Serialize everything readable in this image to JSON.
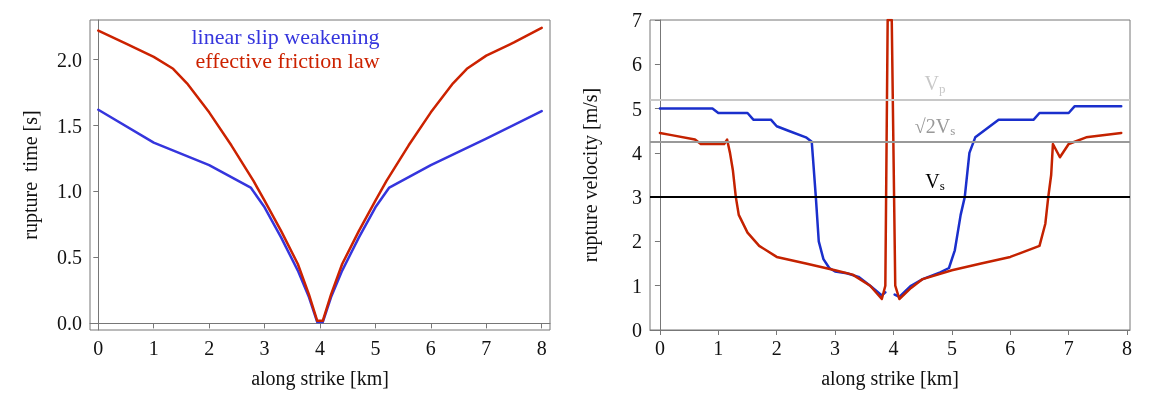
{
  "chart_data": [
    {
      "type": "line",
      "xlabel": "along strike [km]",
      "ylabel": "rupture  time [s]",
      "xlim": [
        -0.15,
        8.15
      ],
      "ylim": [
        -0.05,
        2.3
      ],
      "xticks": [
        0,
        1,
        2,
        3,
        4,
        5,
        6,
        7,
        8
      ],
      "yticks": [
        {
          "value": 0,
          "label": "0.0"
        },
        {
          "value": 0.5,
          "label": "0.5"
        },
        {
          "value": 1,
          "label": "1.0"
        },
        {
          "value": 1.5,
          "label": "1.5"
        },
        {
          "value": 2,
          "label": "2.0"
        }
      ],
      "legend": "top",
      "marker": "none",
      "line_style": "solid",
      "series": [
        {
          "name": "linear slip weakening",
          "color": "#3535dd",
          "x": [
            0,
            1,
            2,
            2.75,
            3,
            3.3,
            3.6,
            3.8,
            3.95,
            4.05,
            4.2,
            4.4,
            4.7,
            5,
            5.25,
            6,
            7,
            8
          ],
          "values": [
            1.62,
            1.37,
            1.2,
            1.03,
            0.88,
            0.65,
            0.4,
            0.2,
            0.01,
            0.01,
            0.2,
            0.4,
            0.65,
            0.88,
            1.03,
            1.2,
            1.4,
            1.61
          ]
        },
        {
          "name": "effective friction law",
          "color": "#cc2200",
          "x": [
            0,
            0.5,
            1,
            1.35,
            1.6,
            2,
            2.4,
            2.8,
            3,
            3.3,
            3.6,
            3.8,
            3.95,
            4.05,
            4.2,
            4.4,
            4.7,
            5,
            5.2,
            5.6,
            6,
            6.4,
            6.65,
            7,
            7.5,
            8
          ],
          "values": [
            2.22,
            2.12,
            2.02,
            1.93,
            1.82,
            1.6,
            1.35,
            1.08,
            0.93,
            0.7,
            0.45,
            0.22,
            0.02,
            0.02,
            0.22,
            0.45,
            0.7,
            0.93,
            1.08,
            1.35,
            1.6,
            1.82,
            1.93,
            2.03,
            2.13,
            2.24
          ]
        }
      ]
    },
    {
      "type": "line",
      "xlabel": "along strike [km]",
      "ylabel": "rupture velocity [m/s]",
      "xlim": [
        -0.17,
        8.05
      ],
      "ylim": [
        0,
        7
      ],
      "xticks": [
        0,
        1,
        2,
        3,
        4,
        5,
        6,
        7,
        8
      ],
      "yticks": [
        0,
        1,
        2,
        3,
        4,
        5,
        6,
        7
      ],
      "marker": "none",
      "line_style": "solid",
      "series": [
        {
          "color": "#1a2fcc",
          "x": [
            0,
            0.9,
            1,
            1.5,
            1.6,
            1.9,
            2,
            2.2,
            2.5,
            2.6,
            2.62,
            2.67,
            2.72,
            2.8,
            2.9,
            3,
            3.2,
            3.4,
            3.6,
            3.8,
            3.86,
            3.9,
            3.97,
            4.02,
            4.1,
            4.3,
            4.5,
            4.8,
            4.95,
            5.05,
            5.15,
            5.22,
            5.3,
            5.4,
            5.6,
            5.8,
            6.4,
            6.5,
            7,
            7.1,
            7.9
          ],
          "values": [
            5,
            5,
            4.9,
            4.9,
            4.75,
            4.75,
            4.6,
            4.5,
            4.35,
            4.25,
            3.9,
            3,
            2,
            1.6,
            1.4,
            1.32,
            1.28,
            1.2,
            1,
            0.78,
            0.85,
            null,
            null,
            0.8,
            0.75,
            1,
            1.15,
            1.3,
            1.4,
            1.8,
            2.6,
            3,
            4,
            4.35,
            4.55,
            4.75,
            4.75,
            4.9,
            4.9,
            5.05,
            5.05
          ]
        },
        {
          "color": "#c42200",
          "x": [
            0,
            0.2,
            0.6,
            0.7,
            1.1,
            1.15,
            1.2,
            1.25,
            1.3,
            1.35,
            1.5,
            1.7,
            2,
            2.5,
            3,
            3.3,
            3.6,
            3.8,
            3.86,
            3.9,
            3.97,
            4.03,
            4.1,
            4.3,
            4.5,
            5,
            5.5,
            6,
            6.5,
            6.6,
            6.65,
            6.7,
            6.73,
            6.85,
            7,
            7.3,
            7.9
          ],
          "values": [
            4.45,
            4.4,
            4.3,
            4.2,
            4.2,
            4.3,
            4,
            3.6,
            3,
            2.6,
            2.2,
            1.9,
            1.65,
            1.5,
            1.35,
            1.25,
            1,
            0.7,
            1,
            7,
            7,
            1,
            0.7,
            0.95,
            1.15,
            1.35,
            1.5,
            1.65,
            1.9,
            2.4,
            3,
            3.5,
            4.2,
            3.9,
            4.2,
            4.35,
            4.45
          ]
        }
      ],
      "ref_lines": [
        {
          "axis": "y",
          "value": 5.2,
          "label": "V$_{p}$",
          "color": "#c8c8c8"
        },
        {
          "axis": "y",
          "value": 4.24,
          "label": "√2V$_{s}$",
          "color": "#999999"
        },
        {
          "axis": "y",
          "value": 3,
          "label": "V$_{s}$",
          "color": "#000000"
        }
      ]
    }
  ]
}
